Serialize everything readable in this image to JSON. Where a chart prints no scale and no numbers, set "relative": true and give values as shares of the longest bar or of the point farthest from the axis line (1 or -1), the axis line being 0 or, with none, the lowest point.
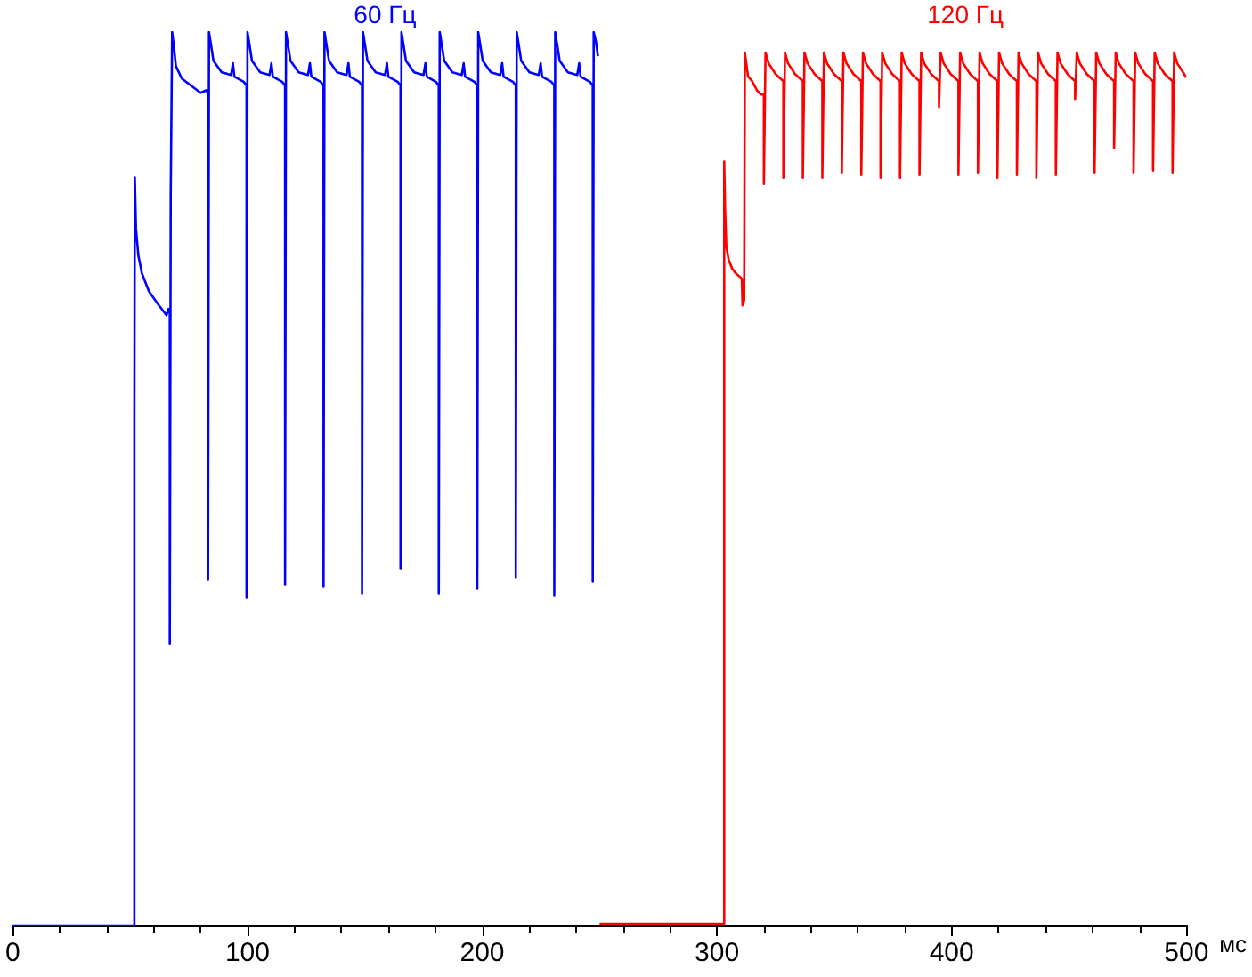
{
  "chart_data": {
    "type": "line",
    "xlabel": "мс",
    "xlim": [
      0,
      500
    ],
    "xticks": [
      0,
      100,
      200,
      300,
      400,
      500
    ],
    "relative": true,
    "grid": false,
    "marker": "none",
    "legend": false,
    "series": [
      {
        "name": "60 Гц",
        "color": "#0000ff",
        "x": [
          0,
          51.8,
          51.8,
          52.0,
          52.5,
          53.5,
          55,
          58,
          62,
          65.5,
          66.3,
          66.9,
          66.9,
          67.3,
          67.9,
          68.6,
          69.5,
          72,
          76,
          80,
          82.6,
          83.2,
          83.2,
          83.6,
          84.5,
          85.5,
          89.0,
          93.0,
          93.8,
          94.4,
          98.5,
          99.6,
          99.6,
          100.0,
          100.9,
          101.9,
          105.4,
          109.4,
          110.2,
          110.8,
          114.9,
          116.0,
          116.0,
          116.4,
          117.3,
          118.3,
          121.8,
          125.8,
          126.6,
          127.2,
          131.3,
          132.4,
          132.4,
          132.8,
          133.7,
          134.7,
          138.2,
          142.2,
          143.0,
          143.6,
          147.7,
          148.8,
          148.8,
          149.2,
          150.1,
          151.1,
          154.6,
          158.6,
          159.4,
          160.0,
          164.1,
          165.2,
          165.2,
          165.6,
          166.5,
          167.5,
          171.0,
          175.0,
          175.8,
          176.4,
          180.4,
          181.5,
          181.5,
          181.9,
          182.8,
          183.8,
          187.3,
          191.3,
          192.1,
          192.7,
          196.8,
          197.9,
          197.9,
          198.3,
          199.2,
          200.2,
          203.7,
          207.7,
          208.5,
          209.1,
          213.2,
          214.3,
          214.3,
          214.7,
          215.6,
          216.6,
          220.1,
          224.1,
          224.9,
          225.5,
          229.6,
          230.7,
          230.7,
          231.1,
          232.0,
          233.0,
          236.5,
          240.5,
          241.3,
          241.9,
          246.0,
          247.1,
          247.1,
          247.5,
          248.4,
          249.3
        ],
        "values": [
          0,
          0,
          0.564,
          0.837,
          0.78,
          0.75,
          0.73,
          0.71,
          0.695,
          0.683,
          0.69,
          0.685,
          0.315,
          0.82,
          1,
          0.985,
          0.962,
          0.948,
          0.94,
          0.932,
          0.935,
          0.93,
          0.387,
          1,
          0.985,
          0.968,
          0.955,
          0.952,
          0.965,
          0.95,
          0.944,
          0.94,
          0.367,
          1,
          0.985,
          0.968,
          0.955,
          0.952,
          0.965,
          0.95,
          0.944,
          0.94,
          0.381,
          1,
          0.985,
          0.968,
          0.955,
          0.952,
          0.965,
          0.95,
          0.944,
          0.94,
          0.379,
          1,
          0.985,
          0.968,
          0.955,
          0.952,
          0.965,
          0.95,
          0.944,
          0.94,
          0.371,
          1,
          0.985,
          0.968,
          0.955,
          0.952,
          0.965,
          0.95,
          0.944,
          0.94,
          0.399,
          1,
          0.985,
          0.968,
          0.955,
          0.952,
          0.965,
          0.95,
          0.944,
          0.94,
          0.371,
          1,
          0.985,
          0.968,
          0.955,
          0.952,
          0.965,
          0.95,
          0.944,
          0.94,
          0.377,
          1,
          0.985,
          0.968,
          0.955,
          0.952,
          0.965,
          0.95,
          0.944,
          0.94,
          0.389,
          1,
          0.985,
          0.968,
          0.955,
          0.952,
          0.965,
          0.95,
          0.944,
          0.94,
          0.369,
          1,
          0.985,
          0.968,
          0.955,
          0.952,
          0.965,
          0.95,
          0.944,
          0.94,
          0.385,
          1,
          0.99,
          0.973
        ]
      },
      {
        "name": "120 Гц",
        "color": "#ff0000",
        "x": [
          250,
          303.1,
          303.1,
          303.5,
          304,
          305,
          306.5,
          308,
          310.6,
          310.9,
          311.6,
          311.9,
          312.5,
          313.3,
          315,
          317,
          318.8,
          320.0,
          320.0,
          320.7,
          322.0,
          325.0,
          328.3,
          328.3,
          329.0,
          330.3,
          333.3,
          336.6,
          336.6,
          337.3,
          338.6,
          341.6,
          344.9,
          344.9,
          345.6,
          346.9,
          349.9,
          353.2,
          353.2,
          353.9,
          355.2,
          358.2,
          361.5,
          361.5,
          362.2,
          363.5,
          366.5,
          369.7,
          369.7,
          370.4,
          371.7,
          374.7,
          378.0,
          378.0,
          378.7,
          380.0,
          383.0,
          386.3,
          386.3,
          387.0,
          388.3,
          391.3,
          394.6,
          394.6,
          395.3,
          396.6,
          399.6,
          402.9,
          402.9,
          403.6,
          404.9,
          407.9,
          411.2,
          411.2,
          411.9,
          413.2,
          416.2,
          419.5,
          419.5,
          420.2,
          421.5,
          424.5,
          427.8,
          427.8,
          428.5,
          429.8,
          432.8,
          436.1,
          436.1,
          436.8,
          438.1,
          441.1,
          444.4,
          444.4,
          445.1,
          446.4,
          449.4,
          452.6,
          452.6,
          453.3,
          454.6,
          457.6,
          460.9,
          460.9,
          461.6,
          462.9,
          465.9,
          469.2,
          469.2,
          469.9,
          471.2,
          474.2,
          477.5,
          477.5,
          478.2,
          479.5,
          482.5,
          485.8,
          485.8,
          486.5,
          487.8,
          490.8,
          494.1,
          494.1,
          494.8,
          496.1,
          499.1,
          499.8
        ],
        "values": [
          0.002,
          0.002,
          0.855,
          0.8,
          0.76,
          0.745,
          0.735,
          0.73,
          0.724,
          0.694,
          0.7,
          0.977,
          0.965,
          0.95,
          0.945,
          0.935,
          0.93,
          0.93,
          0.83,
          0.977,
          0.965,
          0.953,
          0.945,
          0.837,
          0.977,
          0.965,
          0.953,
          0.945,
          0.837,
          0.977,
          0.965,
          0.953,
          0.945,
          0.837,
          0.977,
          0.965,
          0.953,
          0.945,
          0.843,
          0.977,
          0.965,
          0.953,
          0.945,
          0.84,
          0.977,
          0.965,
          0.953,
          0.945,
          0.837,
          0.977,
          0.965,
          0.953,
          0.945,
          0.837,
          0.977,
          0.965,
          0.953,
          0.945,
          0.84,
          0.977,
          0.965,
          0.953,
          0.945,
          0.916,
          0.977,
          0.965,
          0.953,
          0.945,
          0.84,
          0.977,
          0.965,
          0.953,
          0.945,
          0.843,
          0.977,
          0.965,
          0.953,
          0.945,
          0.837,
          0.977,
          0.965,
          0.953,
          0.945,
          0.84,
          0.977,
          0.965,
          0.953,
          0.945,
          0.837,
          0.977,
          0.965,
          0.953,
          0.945,
          0.84,
          0.977,
          0.965,
          0.953,
          0.945,
          0.925,
          0.977,
          0.965,
          0.953,
          0.945,
          0.843,
          0.977,
          0.965,
          0.953,
          0.945,
          0.87,
          0.977,
          0.965,
          0.953,
          0.945,
          0.843,
          0.977,
          0.965,
          0.953,
          0.945,
          0.845,
          0.977,
          0.965,
          0.953,
          0.945,
          0.843,
          0.977,
          0.965,
          0.953,
          0.949
        ]
      }
    ]
  }
}
